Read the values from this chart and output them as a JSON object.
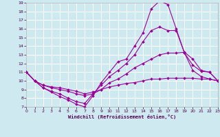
{
  "xlabel": "Windchill (Refroidissement éolien,°C)",
  "bg_color": "#cfe9f0",
  "line_color": "#990099",
  "grid_color": "#c0d8e0",
  "xmin": 0,
  "xmax": 23,
  "ymin": 7,
  "ymax": 19,
  "yticks": [
    7,
    8,
    9,
    10,
    11,
    12,
    13,
    14,
    15,
    16,
    17,
    18,
    19
  ],
  "xticks": [
    0,
    1,
    2,
    3,
    4,
    5,
    6,
    7,
    8,
    9,
    10,
    11,
    12,
    13,
    14,
    15,
    16,
    17,
    18,
    19,
    20,
    21,
    22,
    23
  ],
  "series": [
    {
      "x": [
        0,
        1,
        2,
        3,
        4,
        5,
        6,
        7,
        8,
        9,
        10,
        11,
        12,
        13,
        14,
        15,
        16,
        17,
        18,
        19,
        20,
        21,
        22,
        23
      ],
      "y": [
        11,
        10,
        9.2,
        8.7,
        8.2,
        7.8,
        7.3,
        7.0,
        8.3,
        9.8,
        11.0,
        12.2,
        12.5,
        14.0,
        15.5,
        18.3,
        19.2,
        18.8,
        16.0,
        13.2,
        11.8,
        11.1,
        11.0,
        10.0
      ]
    },
    {
      "x": [
        0,
        1,
        2,
        3,
        4,
        5,
        6,
        7,
        8,
        9,
        10,
        11,
        12,
        13,
        14,
        15,
        16,
        17,
        18,
        19,
        20,
        21,
        22,
        23
      ],
      "y": [
        11,
        10,
        9.2,
        8.8,
        8.5,
        8.0,
        7.6,
        7.4,
        8.5,
        9.5,
        10.5,
        11.2,
        12.0,
        13.0,
        14.5,
        15.8,
        16.2,
        15.8,
        15.8,
        13.2,
        11.2,
        10.5,
        10.2,
        10.0
      ]
    },
    {
      "x": [
        0,
        1,
        2,
        3,
        4,
        5,
        6,
        7,
        8,
        9,
        10,
        11,
        12,
        13,
        14,
        15,
        16,
        17,
        18,
        19,
        20,
        21,
        22,
        23
      ],
      "y": [
        11,
        10,
        9.5,
        9.2,
        9.0,
        8.8,
        8.5,
        8.3,
        8.5,
        9.0,
        9.8,
        10.2,
        10.8,
        11.5,
        12.0,
        12.5,
        13.0,
        13.2,
        13.2,
        13.3,
        12.5,
        11.2,
        11.0,
        10.0
      ]
    },
    {
      "x": [
        0,
        1,
        2,
        3,
        4,
        5,
        6,
        7,
        8,
        9,
        10,
        11,
        12,
        13,
        14,
        15,
        16,
        17,
        18,
        19,
        20,
        21,
        22,
        23
      ],
      "y": [
        11,
        10,
        9.5,
        9.3,
        9.2,
        9.0,
        8.8,
        8.5,
        8.7,
        9.0,
        9.3,
        9.5,
        9.7,
        9.8,
        10.0,
        10.2,
        10.2,
        10.3,
        10.3,
        10.3,
        10.3,
        10.2,
        10.2,
        10.0
      ]
    }
  ]
}
